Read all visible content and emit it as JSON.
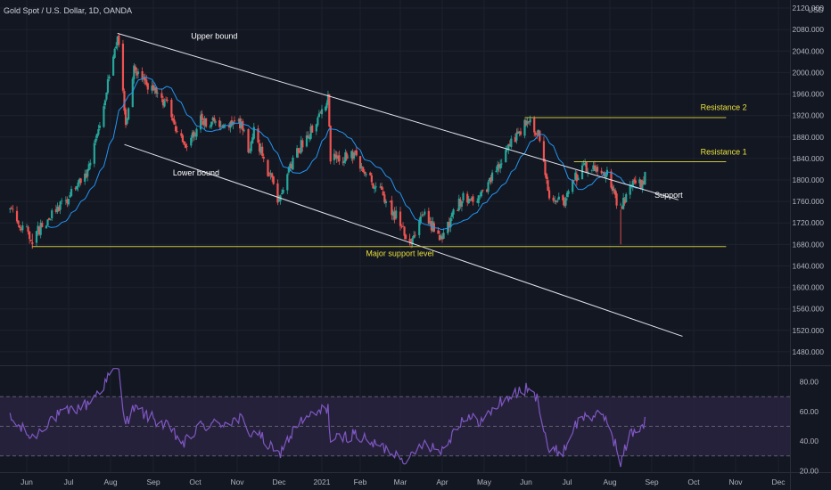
{
  "header": {
    "symbol": "Gold Spot / U.S. Dollar, 1D, OANDA",
    "currency": "USD"
  },
  "colors": {
    "background": "#131722",
    "up_candle": "#26a69a",
    "down_candle": "#ef5350",
    "moving_average": "#2196f3",
    "trendline": "#e0e3eb",
    "level_line": "#c9c33a",
    "rsi_line": "#7e57c2",
    "rsi_band": "#2a2340",
    "grid": "#1e222d",
    "axis_text": "#b2b5be",
    "annotation_text": "#e8e03a"
  },
  "chart_data": [
    {
      "type": "candlestick",
      "name": "price",
      "y_axis": {
        "ticks": [
          1480,
          1520,
          1560,
          1600,
          1640,
          1680,
          1720,
          1760,
          1800,
          1840,
          1880,
          1920,
          1960,
          2000,
          2040,
          2080,
          2120
        ],
        "tick_labels": [
          "1480.000",
          "1520.000",
          "1560.000",
          "1600.000",
          "1640.000",
          "1680.000",
          "1720.000",
          "1760.000",
          "1800.000",
          "1840.000",
          "1880.000",
          "1920.000",
          "1960.000",
          "2000.000",
          "2040.000",
          "2080.000",
          "2120.000"
        ],
        "ylim": [
          1455,
          2135
        ]
      },
      "x_axis": {
        "labels": [
          "Jun",
          "Jul",
          "Aug",
          "Sep",
          "Oct",
          "Nov",
          "Dec",
          "2021",
          "Feb",
          "Mar",
          "Apr",
          "May",
          "Jun",
          "Jul",
          "Aug",
          "Sep",
          "Oct",
          "Nov",
          "Dec"
        ],
        "dates": [
          "2020-06-01",
          "2020-07-01",
          "2020-08-01",
          "2020-09-01",
          "2020-10-01",
          "2020-11-01",
          "2020-12-01",
          "2021-01-01",
          "2021-02-01",
          "2021-03-01",
          "2021-04-01",
          "2021-05-01",
          "2021-06-01",
          "2021-07-01",
          "2021-08-01",
          "2021-09-01",
          "2021-10-01",
          "2021-11-01",
          "2021-12-01"
        ]
      },
      "price_path": [
        [
          "2020-05-20",
          1745
        ],
        [
          "2020-06-05",
          1690
        ],
        [
          "2020-06-18",
          1735
        ],
        [
          "2020-07-01",
          1770
        ],
        [
          "2020-07-15",
          1810
        ],
        [
          "2020-07-27",
          1940
        ],
        [
          "2020-08-06",
          2070
        ],
        [
          "2020-08-12",
          1900
        ],
        [
          "2020-08-18",
          2005
        ],
        [
          "2020-09-01",
          1965
        ],
        [
          "2020-09-10",
          1945
        ],
        [
          "2020-09-23",
          1858
        ],
        [
          "2020-10-05",
          1910
        ],
        [
          "2020-10-20",
          1905
        ],
        [
          "2020-11-04",
          1905
        ],
        [
          "2020-11-09",
          1855
        ],
        [
          "2020-11-13",
          1888
        ],
        [
          "2020-11-30",
          1768
        ],
        [
          "2020-12-15",
          1855
        ],
        [
          "2021-01-06",
          1950
        ],
        [
          "2021-01-08",
          1840
        ],
        [
          "2021-01-28",
          1845
        ],
        [
          "2021-02-05",
          1810
        ],
        [
          "2021-02-16",
          1775
        ],
        [
          "2021-03-01",
          1720
        ],
        [
          "2021-03-08",
          1685
        ],
        [
          "2021-03-18",
          1735
        ],
        [
          "2021-03-31",
          1690
        ],
        [
          "2021-04-15",
          1765
        ],
        [
          "2021-04-30",
          1770
        ],
        [
          "2021-05-15",
          1842
        ],
        [
          "2021-06-01",
          1910
        ],
        [
          "2021-06-10",
          1890
        ],
        [
          "2021-06-18",
          1770
        ],
        [
          "2021-06-29",
          1760
        ],
        [
          "2021-07-06",
          1800
        ],
        [
          "2021-07-15",
          1825
        ],
        [
          "2021-07-30",
          1815
        ],
        [
          "2021-08-06",
          1760
        ],
        [
          "2021-08-09",
          1745
        ],
        [
          "2021-08-16",
          1785
        ],
        [
          "2021-08-24",
          1795
        ],
        [
          "2021-08-27",
          1805
        ]
      ]
    },
    {
      "type": "line",
      "name": "rsi",
      "y_axis": {
        "ticks": [
          20,
          40,
          60,
          80
        ],
        "tick_labels": [
          "20.00",
          "40.00",
          "60.00",
          "80.00"
        ],
        "ylim": [
          19,
          90
        ],
        "band": [
          30,
          70
        ],
        "midline": 50
      },
      "points": [
        [
          "2020-05-20",
          55
        ],
        [
          "2020-06-05",
          42
        ],
        [
          "2020-06-18",
          55
        ],
        [
          "2020-07-01",
          60
        ],
        [
          "2020-07-15",
          65
        ],
        [
          "2020-07-27",
          78
        ],
        [
          "2020-08-06",
          92
        ],
        [
          "2020-08-12",
          52
        ],
        [
          "2020-08-18",
          62
        ],
        [
          "2020-09-01",
          55
        ],
        [
          "2020-09-10",
          50
        ],
        [
          "2020-09-23",
          38
        ],
        [
          "2020-10-05",
          50
        ],
        [
          "2020-10-20",
          52
        ],
        [
          "2020-11-04",
          55
        ],
        [
          "2020-11-09",
          44
        ],
        [
          "2020-11-13",
          48
        ],
        [
          "2020-11-30",
          30
        ],
        [
          "2020-12-15",
          52
        ],
        [
          "2021-01-06",
          63
        ],
        [
          "2021-01-08",
          40
        ],
        [
          "2021-01-28",
          45
        ],
        [
          "2021-02-05",
          40
        ],
        [
          "2021-02-16",
          36
        ],
        [
          "2021-03-01",
          30
        ],
        [
          "2021-03-08",
          27
        ],
        [
          "2021-03-18",
          40
        ],
        [
          "2021-03-31",
          33
        ],
        [
          "2021-04-15",
          55
        ],
        [
          "2021-04-30",
          54
        ],
        [
          "2021-05-15",
          68
        ],
        [
          "2021-06-01",
          75
        ],
        [
          "2021-06-10",
          68
        ],
        [
          "2021-06-18",
          32
        ],
        [
          "2021-06-29",
          34
        ],
        [
          "2021-07-06",
          50
        ],
        [
          "2021-07-15",
          58
        ],
        [
          "2021-07-30",
          55
        ],
        [
          "2021-08-06",
          35
        ],
        [
          "2021-08-09",
          25
        ],
        [
          "2021-08-16",
          45
        ],
        [
          "2021-08-24",
          50
        ],
        [
          "2021-08-27",
          53
        ]
      ]
    }
  ],
  "annotations": {
    "upper_bound": {
      "label": "Upper bound",
      "start": [
        "2020-08-06",
        2073
      ],
      "end": [
        "2021-09-20",
        1763
      ],
      "label_at": [
        "2020-09-28",
        2063
      ]
    },
    "lower_bound": {
      "label": "Lower bound",
      "start": [
        "2020-08-11",
        1866
      ],
      "end": [
        "2021-09-23",
        1509
      ],
      "label_at": [
        "2020-09-15",
        1808
      ]
    },
    "major_support": {
      "label": "Major support level",
      "price": 1676,
      "start": "2020-06-05",
      "end": "2021-10-25",
      "label_at": [
        "2021-02-05",
        1658
      ]
    },
    "resistance_1": {
      "label": "Resistance 1",
      "price": 1834,
      "start": "2021-07-06",
      "end": "2021-10-25",
      "label_at": [
        "2021-10-06",
        1847
      ]
    },
    "resistance_2": {
      "label": "Resistance 2",
      "price": 1916,
      "start": "2021-05-31",
      "end": "2021-10-25",
      "label_at": [
        "2021-10-06",
        1930
      ]
    },
    "support": {
      "label": "Support",
      "label_at": [
        "2021-09-03",
        1767
      ]
    }
  }
}
